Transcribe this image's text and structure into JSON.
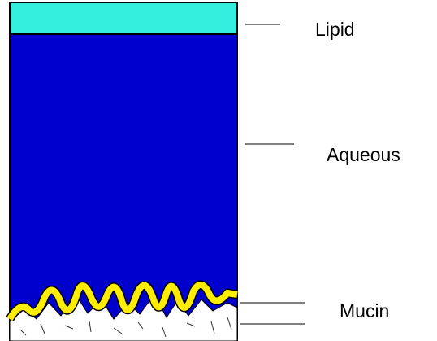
{
  "layers": [
    {
      "label": "Lipid"
    },
    {
      "label": "Aqueous"
    },
    {
      "label": "Mucin"
    }
  ]
}
